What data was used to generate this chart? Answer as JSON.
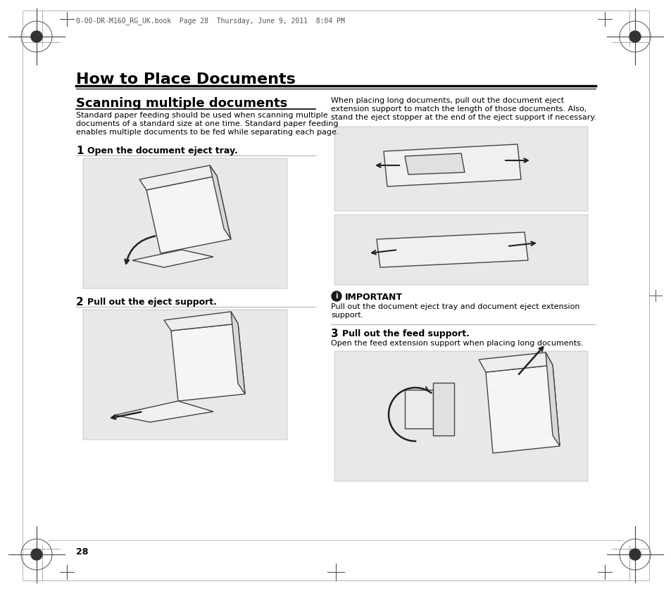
{
  "bg_color": "#ffffff",
  "page_num": "28",
  "header_text": "0-00-DR-M160_RG_UK.book  Page 28  Thursday, June 9, 2011  8:04 PM",
  "main_title": "How to Place Documents",
  "section_title": "Scanning multiple documents",
  "section_body_lines": [
    "Standard paper feeding should be used when scanning multiple",
    "documents of a standard size at one time. Standard paper feeding",
    "enables multiple documents to be fed while separating each page."
  ],
  "step1_num": "1",
  "step1_text": "Open the document eject tray.",
  "step2_num": "2",
  "step2_text": "Pull out the eject support.",
  "step3_num": "3",
  "step3_text": "Pull out the feed support.",
  "step3_body": "Open the feed extension support when placing long documents.",
  "right_intro_lines": [
    "When placing long documents, pull out the document eject",
    "extension support to match the length of those documents. Also,",
    "stand the eject stopper at the end of the eject support if necessary."
  ],
  "important_title": "IMPORTANT",
  "important_body_lines": [
    "Pull out the document eject tray and document eject extension",
    "support."
  ],
  "text_color": "#000000",
  "illus_color": "#e8e8e8",
  "illus_border": "#999999",
  "title_fontsize": 16,
  "section_title_fontsize": 13,
  "body_fontsize": 8.0,
  "step_label_fontsize": 9,
  "step_num_fontsize": 11,
  "header_fontsize": 7
}
